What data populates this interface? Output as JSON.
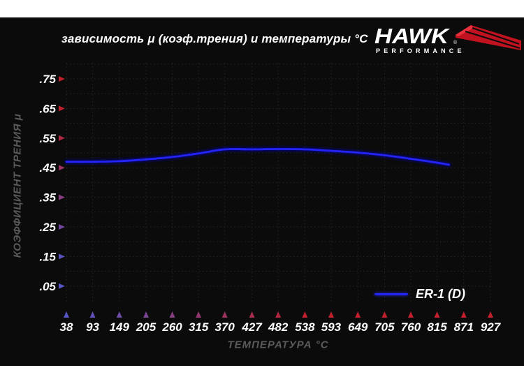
{
  "logo": {
    "brand": "HAWK",
    "registered": "®",
    "subtitle": "PERFORMANCE"
  },
  "colors": {
    "background": "#0b0b0b",
    "frame": "#ffffff",
    "grid": "#222a22",
    "axis_red": "#b51f29",
    "axis_mid": "#8c2050",
    "axis_blue": "#2c2c9e",
    "arrow_red": "#c0202c",
    "arrow_blue": "#5656c6",
    "curve_blue": "#2424f5",
    "curve_glow": "#0000c8",
    "label_white": "#ffffff",
    "muted_gray": "#5a5a5a",
    "logo_red": "#c1121f"
  },
  "chart_data": {
    "type": "line",
    "title": "зависимость μ (коэф.трения) и температуры °C",
    "xlabel": "ТЕМПЕРАТУРА °C",
    "ylabel": "КОЭФФИЦИЕНТ ТРЕНИЯ μ",
    "x_ticks": [
      38,
      93,
      149,
      205,
      260,
      315,
      370,
      427,
      482,
      538,
      593,
      649,
      705,
      760,
      815,
      871,
      927
    ],
    "x_tick_labels": [
      "38",
      "93",
      "149",
      "205",
      "260",
      "315",
      "370",
      "427",
      "482",
      "538",
      "593",
      "649",
      "705",
      "760",
      "815",
      "871",
      "927"
    ],
    "y_ticks": [
      0.05,
      0.15,
      0.25,
      0.35,
      0.45,
      0.55,
      0.65,
      0.75
    ],
    "y_tick_labels": [
      ".05",
      ".15",
      ".25",
      ".35",
      ".45",
      ".55",
      ".65",
      ".75"
    ],
    "xlim": [
      38,
      927
    ],
    "ylim": [
      0,
      0.8
    ],
    "grid": {
      "shown": true,
      "style": "dotted",
      "y_step": 0.05,
      "x_step": "every tick"
    },
    "legend_position": "bottom-right-inside",
    "series": [
      {
        "name": "ER-1 (D)",
        "points": [
          [
            38,
            0.47
          ],
          [
            93,
            0.47
          ],
          [
            149,
            0.472
          ],
          [
            205,
            0.478
          ],
          [
            260,
            0.486
          ],
          [
            315,
            0.498
          ],
          [
            370,
            0.512
          ],
          [
            427,
            0.512
          ],
          [
            482,
            0.513
          ],
          [
            538,
            0.512
          ],
          [
            593,
            0.507
          ],
          [
            649,
            0.501
          ],
          [
            705,
            0.492
          ],
          [
            760,
            0.48
          ],
          [
            815,
            0.467
          ],
          [
            840,
            0.46
          ]
        ]
      }
    ]
  }
}
